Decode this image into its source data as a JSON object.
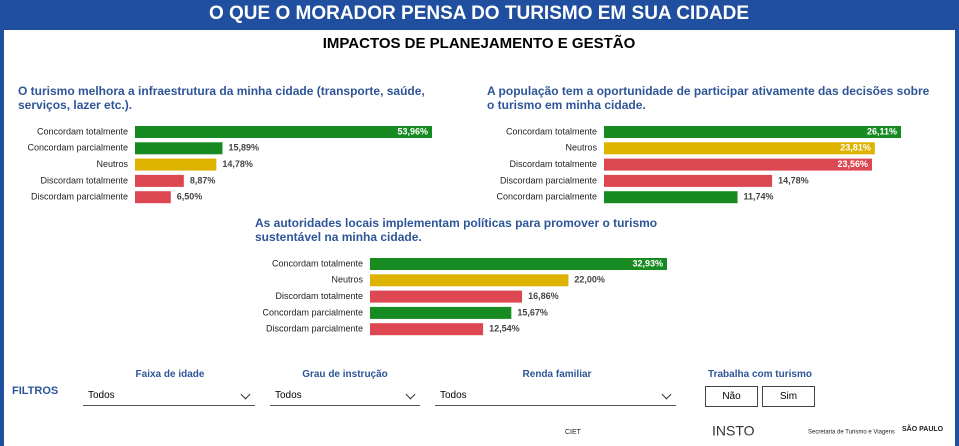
{
  "header": {
    "title": "O QUE O MORADOR PENSA DO TURISMO EM SUA CIDADE",
    "subtitle": "IMPACTOS DE PLANEJAMENTO E GESTÃO"
  },
  "chart_data": [
    {
      "type": "hbar",
      "title": "O turismo melhora a infraestrutura da minha cidade (transporte, saúde, serviços, lazer etc.).",
      "categories": [
        "Concordam totalmente",
        "Concordam parcialmente",
        "Neutros",
        "Discordam totalmente",
        "Discordam parcialmente"
      ],
      "values": [
        53.96,
        15.89,
        14.78,
        8.87,
        6.5
      ],
      "value_labels": [
        "53,96%",
        "15,89%",
        "14,78%",
        "8,87%",
        "6,50%"
      ],
      "colors": [
        "#178a22",
        "#178a22",
        "#ddb300",
        "#dd4752",
        "#dd4752"
      ]
    },
    {
      "type": "hbar",
      "title": "A população tem a oportunidade de participar ativamente das decisões sobre o turismo em minha cidade.",
      "categories": [
        "Concordam totalmente",
        "Neutros",
        "Discordam totalmente",
        "Discordam parcialmente",
        "Concordam parcialmente"
      ],
      "values": [
        26.11,
        23.81,
        23.56,
        14.78,
        11.74
      ],
      "value_labels": [
        "26,11%",
        "23,81%",
        "23,56%",
        "14,78%",
        "11,74%"
      ],
      "colors": [
        "#178a22",
        "#ddb300",
        "#dd4752",
        "#dd4752",
        "#178a22"
      ]
    },
    {
      "type": "hbar",
      "title": "As autoridades locais implementam políticas para promover o turismo sustentável na minha cidade.",
      "categories": [
        "Concordam totalmente",
        "Neutros",
        "Discordam totalmente",
        "Concordam parcialmente",
        "Discordam parcialmente"
      ],
      "values": [
        32.93,
        22.0,
        16.86,
        15.67,
        12.54
      ],
      "value_labels": [
        "32,93%",
        "22,00%",
        "16,86%",
        "15,67%",
        "12,54%"
      ],
      "colors": [
        "#178a22",
        "#ddb300",
        "#dd4752",
        "#178a22",
        "#dd4752"
      ]
    }
  ],
  "filters": {
    "label": "FILTROS",
    "age": {
      "label": "Faixa de idade",
      "value": "Todos"
    },
    "education": {
      "label": "Grau de instrução",
      "value": "Todos"
    },
    "income": {
      "label": "Renda familiar",
      "value": "Todos"
    },
    "tourism_work": {
      "label": "Trabalha com turismo",
      "options": [
        "Não",
        "Sim"
      ]
    }
  },
  "footer": {
    "logos": [
      "CIET",
      "INSTO",
      "Secretaria de Turismo e Viagens",
      "SÃO PAULO"
    ]
  }
}
